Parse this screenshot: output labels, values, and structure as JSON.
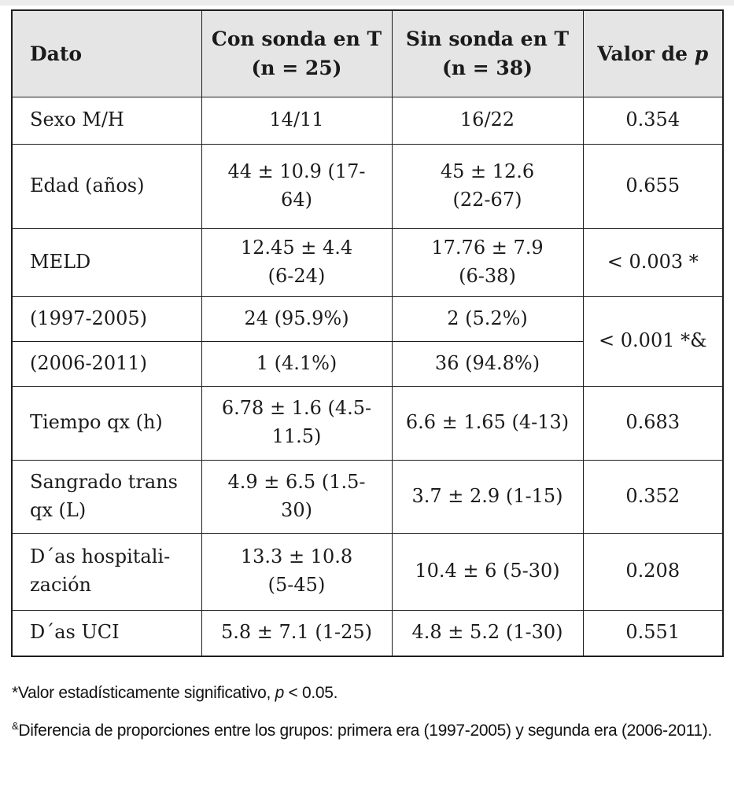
{
  "table": {
    "header": {
      "col1": "Dato",
      "col2": "Con sonda en T\n(n = 25)",
      "col3": "Sin sonda en T\n(n = 38)",
      "col4_parts": [
        {
          "t": "Valor de "
        },
        {
          "t": "p",
          "i": true
        }
      ]
    },
    "rows": [
      {
        "dato": "Sexo M/H",
        "con": "14/11",
        "sin": "16/22",
        "p": "0.354"
      },
      {
        "dato": "Edad (años)",
        "con": "44 ± 10.9 (17-\n64)",
        "sin": "45 ± 12.6\n(22-67)",
        "p": "0.655"
      },
      {
        "dato": "MELD",
        "con": "12.45 ± 4.4\n(6-24)",
        "sin": "17.76 ± 7.9\n(6-38)",
        "p": "< 0.003 *"
      },
      {
        "dato": "(1997-2005)",
        "con": "24 (95.9%)",
        "sin": "2 (5.2%)",
        "p": "< 0.001 *&",
        "p_rowspan": 2
      },
      {
        "dato": "(2006-2011)",
        "con": "1 (4.1%)",
        "sin": "36 (94.8%)",
        "p": null
      },
      {
        "dato": "Tiempo qx (h)",
        "con": "6.78 ± 1.6 (4.5-\n11.5)",
        "sin": "6.6 ± 1.65 (4-13)",
        "p": "0.683"
      },
      {
        "dato": "Sangrado trans\nqx (L)",
        "con": "4.9 ± 6.5 (1.5-\n30)",
        "sin": "3.7 ± 2.9 (1-15)",
        "p": "0.352"
      },
      {
        "dato": "D´as hospitali-\nzación",
        "con": "13.3 ± 10.8\n(5-45)",
        "sin": "10.4 ± 6 (5-30)",
        "p": "0.208"
      },
      {
        "dato": "D´as UCI",
        "con": "5.8 ± 7.1 (1-25)",
        "sin": "4.8 ± 5.2 (1-30)",
        "p": "0.551"
      }
    ]
  },
  "footnotes": {
    "fn1_parts": [
      {
        "t": "*Valor estadísticamente significativo, "
      },
      {
        "t": "p",
        "i": true
      },
      {
        "t": " < 0.05."
      }
    ],
    "fn2_parts": [
      {
        "t": "&",
        "sup": true
      },
      {
        "t": "Diferencia de proporciones entre los grupos: primera era (1997-2005) y segunda era (2006-2011)."
      }
    ]
  },
  "colors": {
    "header_bg": "#e5e5e6",
    "border": "#1d1d1d",
    "text": "#1b1b1b"
  }
}
